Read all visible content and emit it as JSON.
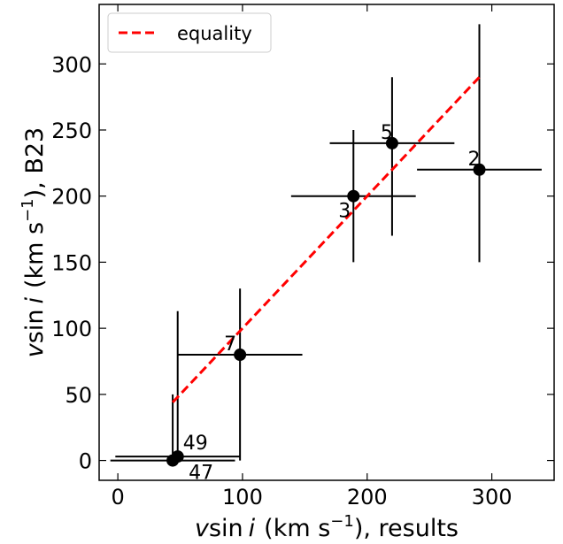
{
  "chart_data": {
    "type": "scatter",
    "xlabel": {
      "v": "v",
      "sin": "sin",
      "i": "i",
      "units": "(km s",
      "exp": "−1",
      "tail": "), results"
    },
    "ylabel": {
      "v": "v",
      "sin": "sin",
      "i": "i",
      "units": "(km s",
      "exp": "−1",
      "tail": "), B23"
    },
    "xlim": [
      -15,
      350
    ],
    "ylim": [
      -15,
      345
    ],
    "xticks": [
      0,
      100,
      200,
      300
    ],
    "yticks": [
      0,
      50,
      100,
      150,
      200,
      250,
      300
    ],
    "grid": false,
    "legend_position": "top-left",
    "points": [
      {
        "label": "47",
        "x": 44,
        "y": 0,
        "xerr": 50,
        "yerr_low": 0,
        "yerr_high": 50
      },
      {
        "label": "49",
        "x": 48,
        "y": 3,
        "xerr": 50,
        "yerr_low": 0,
        "yerr_high": 110
      },
      {
        "label": "7",
        "x": 98,
        "y": 80,
        "xerr": 50,
        "yerr_low": 80,
        "yerr_high": 50
      },
      {
        "label": "3",
        "x": 189,
        "y": 200,
        "xerr": 50,
        "yerr_low": 50,
        "yerr_high": 50
      },
      {
        "label": "5",
        "x": 220,
        "y": 240,
        "xerr": 50,
        "yerr_low": 70,
        "yerr_high": 50
      },
      {
        "label": "2",
        "x": 290,
        "y": 220,
        "xerr": 50,
        "yerr_low": 70,
        "yerr_high": 110
      }
    ],
    "equality_line": {
      "name": "equality",
      "x": [
        44,
        290
      ],
      "y": [
        44,
        290
      ],
      "color": "#ff0000"
    },
    "point_color": "#000000"
  }
}
